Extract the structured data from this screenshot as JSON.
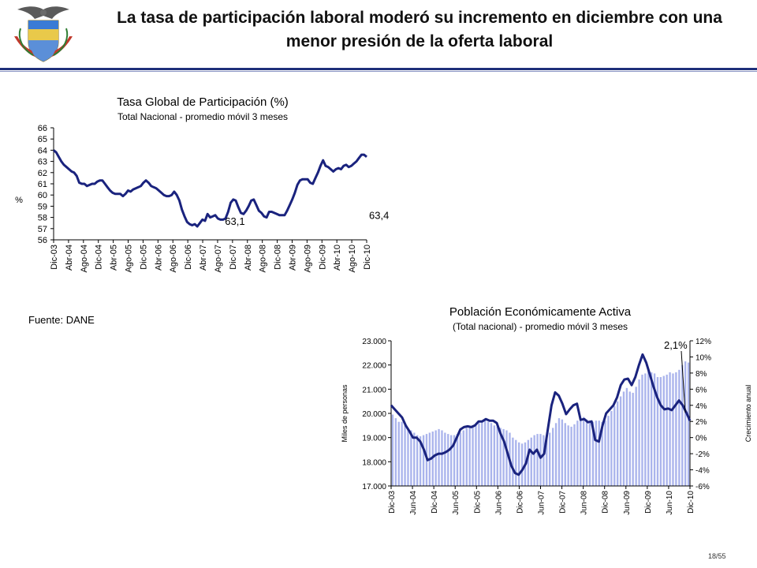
{
  "slide": {
    "title_line1": "La tasa de participación laboral moderó su incremento en diciembre con una",
    "title_line2": "menor presión de la oferta laboral",
    "source": "Fuente: DANE",
    "page": "18/55",
    "accent": "#1f2f7a"
  },
  "chart_data": [
    {
      "type": "line",
      "title": "Tasa Global de Participación (%)",
      "subtitle": "Total Nacional - promedio móvil 3 meses",
      "ylabel": "%",
      "ylim": [
        56,
        66
      ],
      "yticks": [
        "56",
        "57",
        "58",
        "59",
        "60",
        "61",
        "62",
        "63",
        "64",
        "65",
        "66"
      ],
      "xticks": [
        "Dic-03",
        "Abr-04",
        "Ago-04",
        "Dic-04",
        "Abr-05",
        "Ago-05",
        "Dic-05",
        "Abr-06",
        "Ago-06",
        "Dic-06",
        "Abr-07",
        "Ago-07",
        "Dic-07",
        "Abr-08",
        "Ago-08",
        "Dic-08",
        "Abr-09",
        "Ago-09",
        "Dic-09",
        "Abr-10",
        "Ago-10",
        "Dic-10"
      ],
      "line_color": "#1a237e",
      "annotations": [
        {
          "text": "63,1",
          "index": 72
        },
        {
          "text": "63,4",
          "index": 84
        }
      ],
      "values": [
        64.0,
        63.8,
        63.4,
        63.0,
        62.7,
        62.5,
        62.3,
        62.1,
        62.0,
        61.7,
        61.1,
        61.0,
        61.0,
        60.8,
        60.9,
        61.0,
        61.0,
        61.2,
        61.3,
        61.3,
        61.0,
        60.7,
        60.4,
        60.2,
        60.1,
        60.1,
        60.1,
        59.9,
        60.1,
        60.4,
        60.3,
        60.5,
        60.6,
        60.7,
        60.8,
        61.1,
        61.3,
        61.1,
        60.8,
        60.7,
        60.6,
        60.4,
        60.2,
        60.0,
        59.9,
        59.9,
        60.0,
        60.3,
        60.0,
        59.5,
        58.7,
        58.1,
        57.6,
        57.4,
        57.3,
        57.4,
        57.2,
        57.5,
        57.8,
        57.7,
        58.3,
        58.0,
        58.1,
        58.2,
        57.9,
        57.8,
        57.8,
        57.9,
        58.5,
        59.3,
        59.6,
        59.5,
        58.9,
        58.4,
        58.3,
        58.6,
        59.0,
        59.5,
        59.6,
        59.1,
        58.6,
        58.4,
        58.1,
        58.0,
        58.5,
        58.5,
        58.4,
        58.3,
        58.2,
        58.2,
        58.2,
        58.6,
        59.1,
        59.6,
        60.2,
        60.9,
        61.3,
        61.4,
        61.4,
        61.4,
        61.1,
        61.0,
        61.5,
        62.0,
        62.6,
        63.1,
        62.6,
        62.5,
        62.3,
        62.1,
        62.3,
        62.4,
        62.3,
        62.6,
        62.7,
        62.5,
        62.6,
        62.8,
        63.0,
        63.3,
        63.6,
        63.6,
        63.4
      ]
    },
    {
      "type": "bar+line",
      "title": "Población Económicamente Activa",
      "subtitle": "(Total nacional) - promedio móvil 3 meses",
      "ylabel": "Miles de personas",
      "y2label": "Crecimiento anual",
      "ylim": [
        17000,
        23000
      ],
      "y2lim": [
        -6,
        12
      ],
      "yticks": [
        "17.000",
        "18.000",
        "19.000",
        "20.000",
        "21.000",
        "22.000",
        "23.000"
      ],
      "y2ticks": [
        "-6%",
        "-4%",
        "-2%",
        "0%",
        "2%",
        "4%",
        "6%",
        "8%",
        "10%",
        "12%"
      ],
      "xticks": [
        "Dic-03",
        "Jun-04",
        "Dic-04",
        "Jun-05",
        "Dic-05",
        "Jun-06",
        "Dic-06",
        "Jun-07",
        "Dic-07",
        "Jun-08",
        "Dic-08",
        "Jun-09",
        "Dic-09",
        "Jun-10",
        "Dic-10"
      ],
      "bar_color": "#aab4ec",
      "line_color": "#1a237e",
      "annotation": "2,1%",
      "bar_values": [
        19950,
        19800,
        19650,
        19650,
        19500,
        19350,
        19300,
        19200,
        19100,
        19050,
        19100,
        19150,
        19200,
        19250,
        19300,
        19350,
        19300,
        19200,
        19150,
        19100,
        19100,
        19150,
        19200,
        19300,
        19400,
        19450,
        19500,
        19550,
        19600,
        19650,
        19700,
        19650,
        19600,
        19500,
        19450,
        19400,
        19350,
        19300,
        19200,
        19000,
        18900,
        18800,
        18750,
        18800,
        18900,
        19000,
        19100,
        19150,
        19150,
        19100,
        19100,
        19200,
        19400,
        19600,
        19800,
        19750,
        19600,
        19500,
        19450,
        19550,
        19700,
        19800,
        19850,
        19750,
        19700,
        19650,
        19700,
        19700,
        19650,
        19700,
        19900,
        20100,
        20300,
        20500,
        20700,
        20900,
        21050,
        20900,
        20850,
        21100,
        21400,
        21600,
        21650,
        21750,
        21700,
        21650,
        21500,
        21500,
        21550,
        21600,
        21700,
        21650,
        21700,
        21800,
        22000,
        22150,
        22100
      ],
      "growth_values": [
        4.0,
        3.5,
        3.0,
        2.5,
        1.5,
        0.8,
        0.0,
        0.0,
        -0.5,
        -1.5,
        -2.8,
        -2.6,
        -2.2,
        -2.0,
        -2.0,
        -1.8,
        -1.5,
        -1.0,
        0.0,
        1.0,
        1.3,
        1.4,
        1.3,
        1.5,
        2.0,
        2.0,
        2.3,
        2.1,
        2.1,
        1.8,
        0.5,
        -0.5,
        -2.0,
        -3.5,
        -4.4,
        -4.6,
        -4.0,
        -3.2,
        -1.5,
        -2.0,
        -1.5,
        -2.5,
        -2.0,
        1.0,
        4.0,
        5.6,
        5.2,
        4.2,
        2.9,
        3.5,
        4.0,
        4.2,
        2.2,
        2.3,
        1.9,
        2.0,
        -0.3,
        -0.5,
        1.5,
        3.0,
        3.5,
        4.0,
        5.0,
        6.5,
        7.2,
        7.3,
        6.5,
        7.5,
        9.0,
        10.3,
        9.3,
        7.8,
        6.3,
        5.0,
        4.0,
        3.5,
        3.6,
        3.4,
        4.0,
        4.6,
        4.0,
        3.1,
        2.1
      ]
    }
  ]
}
